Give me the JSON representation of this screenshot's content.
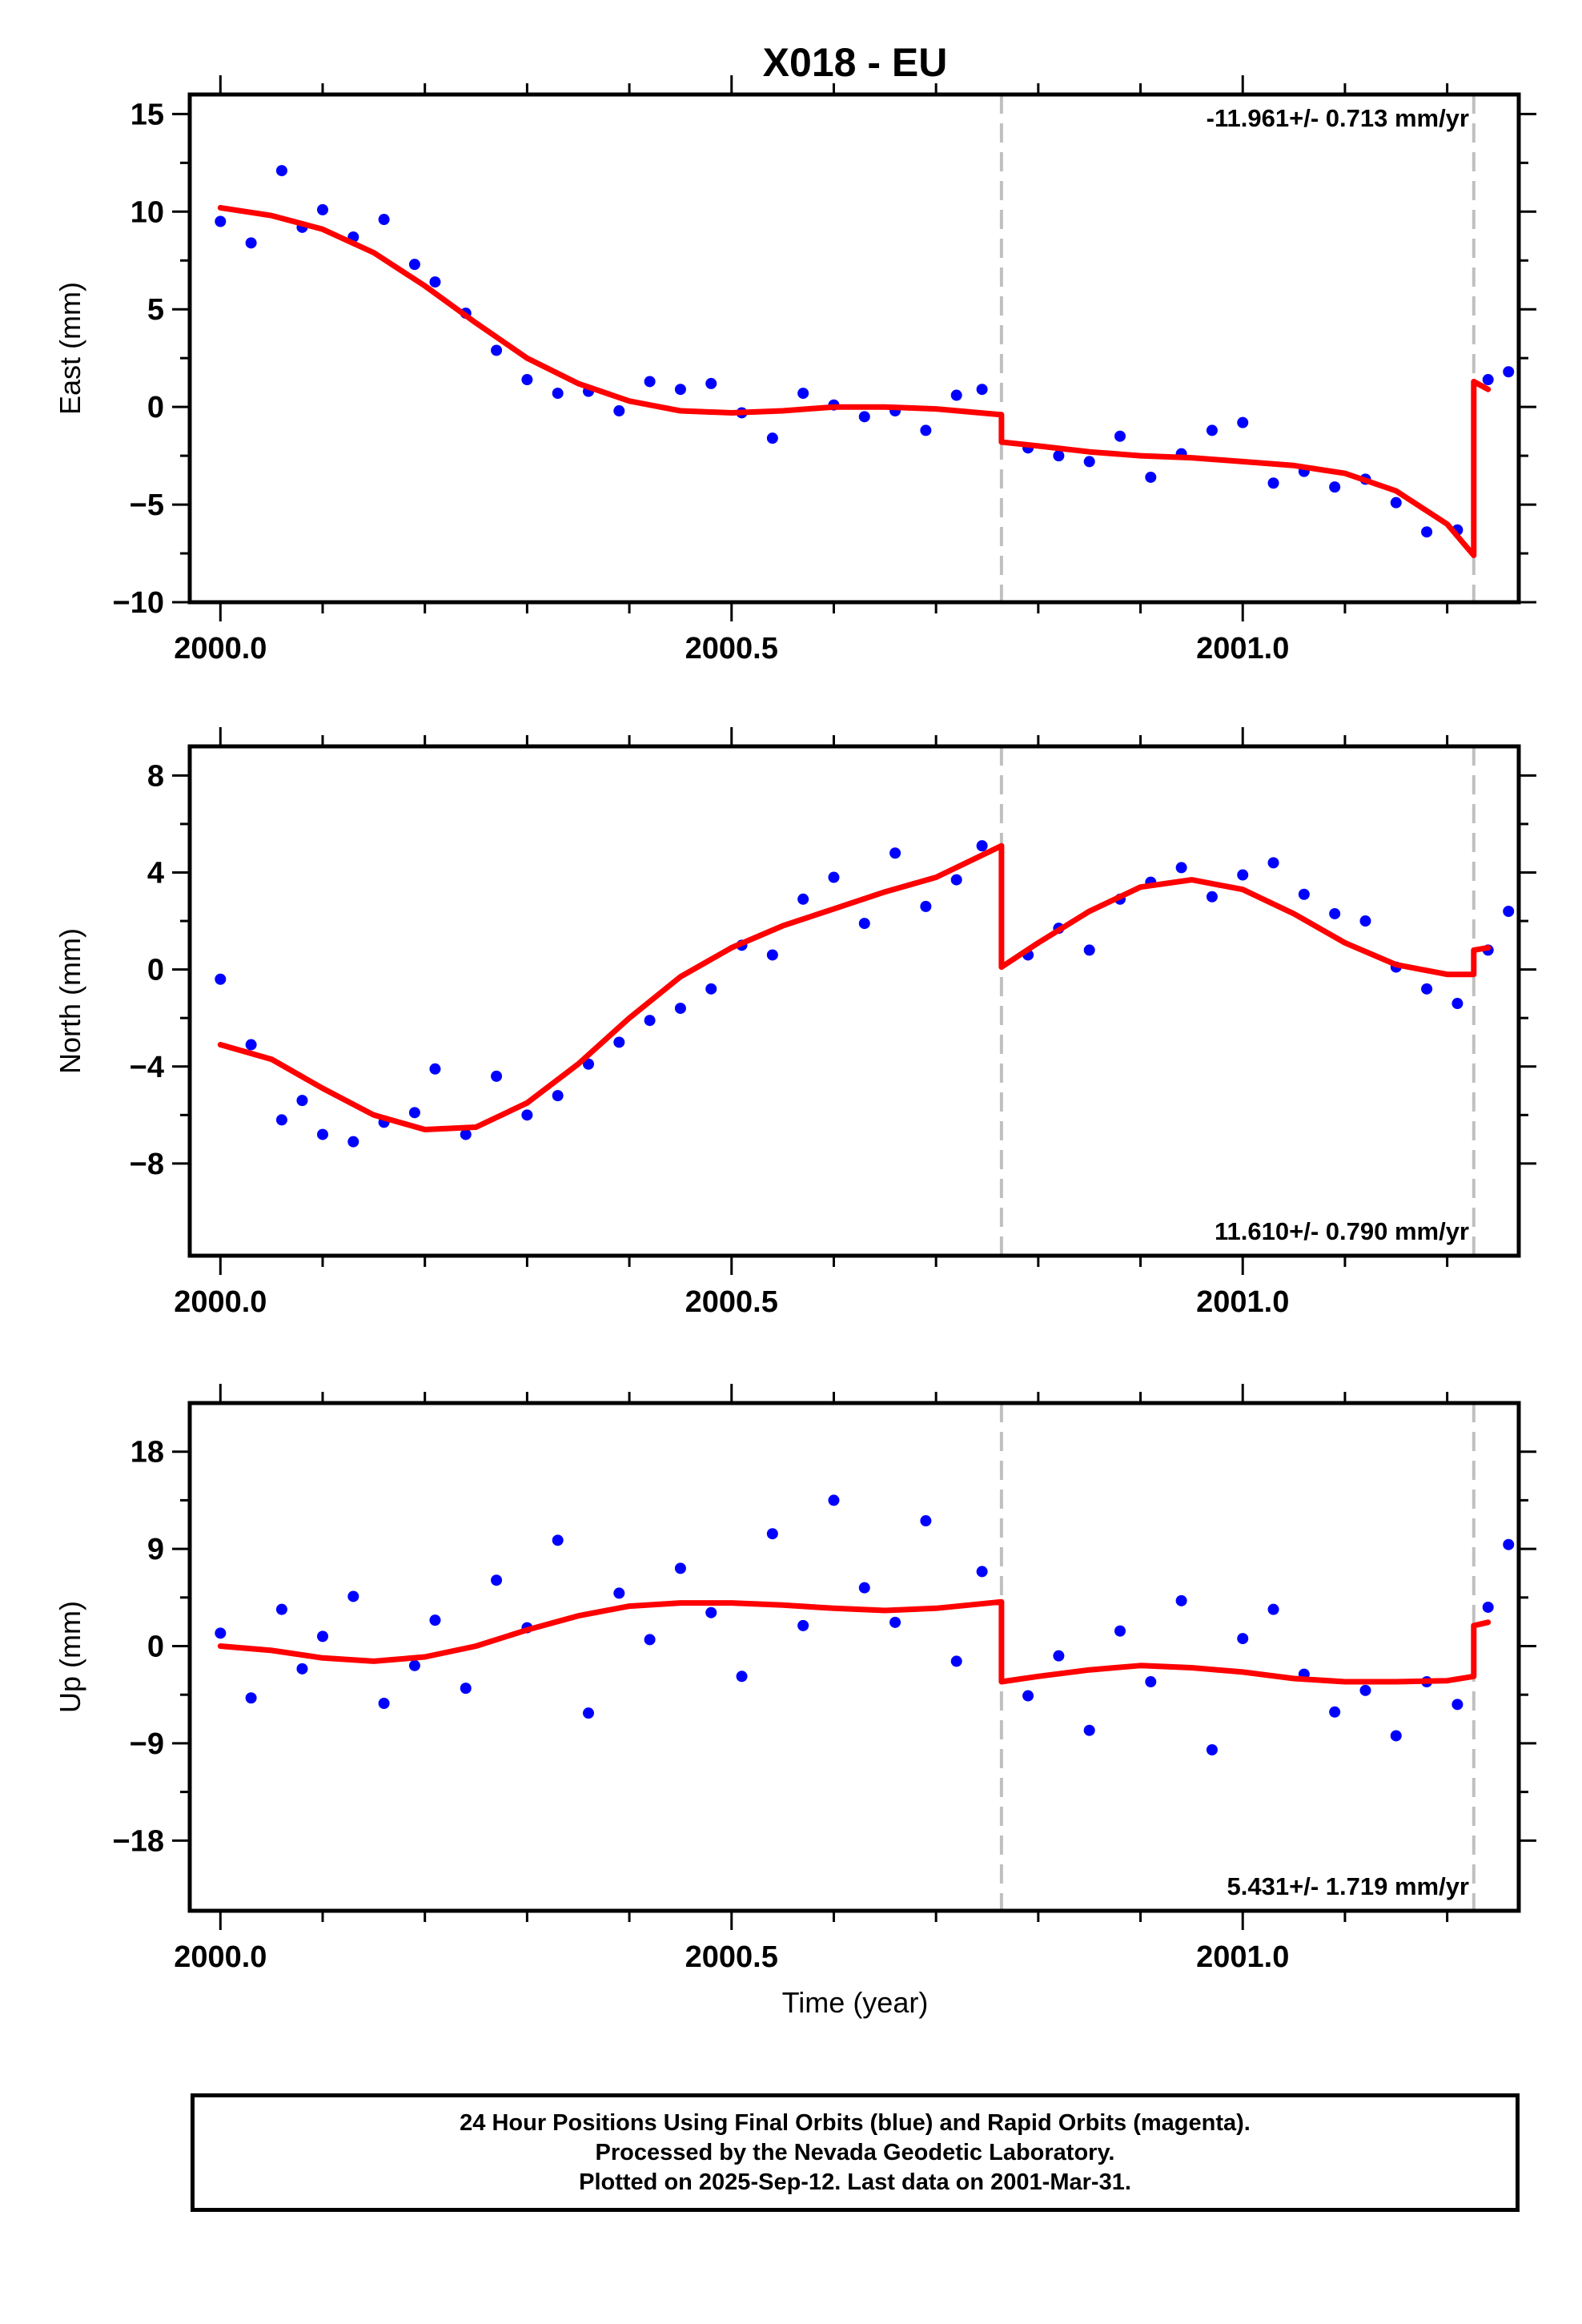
{
  "title": "X018 - EU",
  "xlabel": "Time (year)",
  "caption": [
    "24 Hour Positions Using Final Orbits (blue) and Rapid Orbits (magenta).",
    "Processed by the Nevada Geodetic Laboratory.",
    "Plotted on 2025-Sep-12. Last data on 2001-Mar-31."
  ],
  "colors": {
    "points": "#0000ff",
    "model": "#ff0000",
    "breaks": "#c0c0c0",
    "frame": "#000000"
  },
  "chart_data": [
    {
      "type": "scatter",
      "ylabel": "East (mm)",
      "rate_label": "-11.961+/- 0.713 mm/yr",
      "rate_position": "top-right",
      "xlim": [
        1999.97,
        2001.27
      ],
      "ylim": [
        -10,
        16
      ],
      "x_ticks": [
        2000.0,
        2000.5,
        2001.0
      ],
      "x_tick_labels": [
        "2000.0",
        "2000.5",
        "2001.0"
      ],
      "y_ticks": [
        -10,
        -5,
        0,
        5,
        10,
        15
      ],
      "y_tick_labels": [
        "−10",
        "−5",
        "0",
        "5",
        "10",
        "15"
      ],
      "breaks": [
        2000.764,
        2001.226
      ],
      "series": [
        {
          "kind": "points",
          "color": "#0000ff",
          "x": [
            2000.0,
            2000.03,
            2000.06,
            2000.08,
            2000.1,
            2000.13,
            2000.16,
            2000.19,
            2000.21,
            2000.24,
            2000.27,
            2000.3,
            2000.33,
            2000.36,
            2000.39,
            2000.42,
            2000.45,
            2000.48,
            2000.51,
            2000.54,
            2000.57,
            2000.6,
            2000.63,
            2000.66,
            2000.69,
            2000.72,
            2000.745,
            2000.79,
            2000.82,
            2000.85,
            2000.88,
            2000.91,
            2000.94,
            2000.97,
            2001.0,
            2001.03,
            2001.06,
            2001.09,
            2001.12,
            2001.15,
            2001.18,
            2001.21,
            2001.24,
            2001.26
          ],
          "y": [
            9.5,
            8.4,
            12.1,
            9.2,
            10.1,
            8.7,
            9.6,
            7.3,
            6.4,
            4.8,
            2.9,
            1.4,
            0.7,
            0.8,
            -0.2,
            1.3,
            0.9,
            1.2,
            -0.3,
            -1.6,
            0.7,
            0.1,
            -0.5,
            -0.2,
            -1.2,
            0.6,
            0.9,
            -2.1,
            -2.5,
            -2.8,
            -1.5,
            -3.6,
            -2.4,
            -1.2,
            -0.8,
            -3.9,
            -3.3,
            -4.1,
            -3.7,
            -4.9,
            -6.4,
            -6.3,
            1.4,
            1.8
          ]
        },
        {
          "kind": "line",
          "color": "#ff0000",
          "x": [
            2000.0,
            2000.05,
            2000.1,
            2000.15,
            2000.2,
            2000.25,
            2000.3,
            2000.35,
            2000.4,
            2000.45,
            2000.5,
            2000.55,
            2000.6,
            2000.65,
            2000.7,
            2000.764,
            2000.764,
            2000.8,
            2000.85,
            2000.9,
            2000.95,
            2001.0,
            2001.05,
            2001.1,
            2001.15,
            2001.2,
            2001.226,
            2001.226,
            2001.24
          ],
          "y": [
            10.2,
            9.8,
            9.1,
            7.9,
            6.2,
            4.3,
            2.5,
            1.2,
            0.3,
            -0.2,
            -0.3,
            -0.2,
            0.0,
            0.0,
            -0.1,
            -0.4,
            -1.8,
            -2.0,
            -2.3,
            -2.5,
            -2.6,
            -2.8,
            -3.0,
            -3.4,
            -4.3,
            -6.0,
            -7.6,
            1.3,
            0.9
          ]
        }
      ]
    },
    {
      "type": "scatter",
      "ylabel": "North (mm)",
      "rate_label": "11.610+/- 0.790 mm/yr",
      "rate_position": "bottom-right",
      "xlim": [
        1999.97,
        2001.27
      ],
      "ylim": [
        -11.8,
        9.2
      ],
      "x_ticks": [
        2000.0,
        2000.5,
        2001.0
      ],
      "x_tick_labels": [
        "2000.0",
        "2000.5",
        "2001.0"
      ],
      "y_ticks": [
        -8,
        -4,
        0,
        4,
        8
      ],
      "y_tick_labels": [
        "−8",
        "−4",
        "0",
        "4",
        "8"
      ],
      "breaks": [
        2000.764,
        2001.226
      ],
      "series": [
        {
          "kind": "points",
          "color": "#0000ff",
          "x": [
            2000.0,
            2000.03,
            2000.06,
            2000.08,
            2000.1,
            2000.13,
            2000.16,
            2000.19,
            2000.21,
            2000.24,
            2000.27,
            2000.3,
            2000.33,
            2000.36,
            2000.39,
            2000.42,
            2000.45,
            2000.48,
            2000.51,
            2000.54,
            2000.57,
            2000.6,
            2000.63,
            2000.66,
            2000.69,
            2000.72,
            2000.745,
            2000.79,
            2000.82,
            2000.85,
            2000.88,
            2000.91,
            2000.94,
            2000.97,
            2001.0,
            2001.03,
            2001.06,
            2001.09,
            2001.12,
            2001.15,
            2001.18,
            2001.21,
            2001.24,
            2001.26
          ],
          "y": [
            -0.4,
            -3.1,
            -6.2,
            -5.4,
            -6.8,
            -7.1,
            -6.3,
            -5.9,
            -4.1,
            -6.8,
            -4.4,
            -6.0,
            -5.2,
            -3.9,
            -3.0,
            -2.1,
            -1.6,
            -0.8,
            1.0,
            0.6,
            2.9,
            3.8,
            1.9,
            4.8,
            2.6,
            3.7,
            5.1,
            0.6,
            1.7,
            0.8,
            2.9,
            3.6,
            4.2,
            3.0,
            3.9,
            4.4,
            3.1,
            2.3,
            2.0,
            0.1,
            -0.8,
            -1.4,
            0.8,
            2.4
          ]
        },
        {
          "kind": "line",
          "color": "#ff0000",
          "x": [
            2000.0,
            2000.05,
            2000.1,
            2000.15,
            2000.2,
            2000.25,
            2000.3,
            2000.35,
            2000.4,
            2000.45,
            2000.5,
            2000.55,
            2000.6,
            2000.65,
            2000.7,
            2000.764,
            2000.764,
            2000.8,
            2000.85,
            2000.9,
            2000.95,
            2001.0,
            2001.05,
            2001.1,
            2001.15,
            2001.2,
            2001.226,
            2001.226,
            2001.24
          ],
          "y": [
            -3.1,
            -3.7,
            -4.9,
            -6.0,
            -6.6,
            -6.5,
            -5.5,
            -3.9,
            -2.0,
            -0.3,
            0.9,
            1.8,
            2.5,
            3.2,
            3.8,
            5.1,
            0.1,
            1.1,
            2.4,
            3.4,
            3.7,
            3.3,
            2.3,
            1.1,
            0.2,
            -0.2,
            -0.2,
            0.8,
            0.9
          ]
        }
      ]
    },
    {
      "type": "scatter",
      "ylabel": "Up (mm)",
      "rate_label": "5.431+/- 1.719 mm/yr",
      "rate_position": "bottom-right",
      "xlim": [
        1999.97,
        2001.27
      ],
      "ylim": [
        -24.5,
        22.5
      ],
      "x_ticks": [
        2000.0,
        2000.5,
        2001.0
      ],
      "x_tick_labels": [
        "2000.0",
        "2000.5",
        "2001.0"
      ],
      "y_ticks": [
        -18,
        -9,
        0,
        9,
        18
      ],
      "y_tick_labels": [
        "−18",
        "−9",
        "0",
        "9",
        "18"
      ],
      "breaks": [
        2000.764,
        2001.226
      ],
      "series": [
        {
          "kind": "points",
          "color": "#0000ff",
          "x": [
            2000.0,
            2000.03,
            2000.06,
            2000.08,
            2000.1,
            2000.13,
            2000.16,
            2000.19,
            2000.21,
            2000.24,
            2000.27,
            2000.3,
            2000.33,
            2000.36,
            2000.39,
            2000.42,
            2000.45,
            2000.48,
            2000.51,
            2000.54,
            2000.57,
            2000.6,
            2000.63,
            2000.66,
            2000.69,
            2000.72,
            2000.745,
            2000.79,
            2000.82,
            2000.85,
            2000.88,
            2000.91,
            2000.94,
            2000.97,
            2001.0,
            2001.03,
            2001.06,
            2001.09,
            2001.12,
            2001.15,
            2001.18,
            2001.21,
            2001.24,
            2001.26
          ],
          "y": [
            1.2,
            -4.8,
            3.4,
            -2.1,
            0.9,
            4.6,
            -5.3,
            -1.8,
            2.4,
            -3.9,
            6.1,
            1.7,
            9.8,
            -6.2,
            4.9,
            0.6,
            7.2,
            3.1,
            -2.8,
            10.4,
            1.9,
            13.5,
            5.4,
            2.2,
            11.6,
            -1.4,
            6.9,
            -4.6,
            -0.9,
            -7.8,
            1.4,
            -3.3,
            4.2,
            -9.6,
            0.7,
            3.4,
            -2.6,
            -6.1,
            -4.1,
            -8.3,
            -3.3,
            -5.4,
            3.6,
            9.4
          ]
        },
        {
          "kind": "line",
          "color": "#ff0000",
          "x": [
            2000.0,
            2000.05,
            2000.1,
            2000.15,
            2000.2,
            2000.25,
            2000.3,
            2000.35,
            2000.4,
            2000.45,
            2000.5,
            2000.55,
            2000.6,
            2000.65,
            2000.7,
            2000.764,
            2000.764,
            2000.8,
            2000.85,
            2000.9,
            2000.95,
            2001.0,
            2001.05,
            2001.1,
            2001.15,
            2001.2,
            2001.226,
            2001.226,
            2001.24
          ],
          "y": [
            0.0,
            -0.4,
            -1.1,
            -1.4,
            -1.0,
            0.0,
            1.5,
            2.8,
            3.7,
            4.0,
            4.0,
            3.8,
            3.5,
            3.3,
            3.5,
            4.1,
            -3.3,
            -2.8,
            -2.2,
            -1.8,
            -2.0,
            -2.4,
            -3.0,
            -3.3,
            -3.3,
            -3.2,
            -2.8,
            1.9,
            2.2
          ]
        }
      ]
    }
  ]
}
